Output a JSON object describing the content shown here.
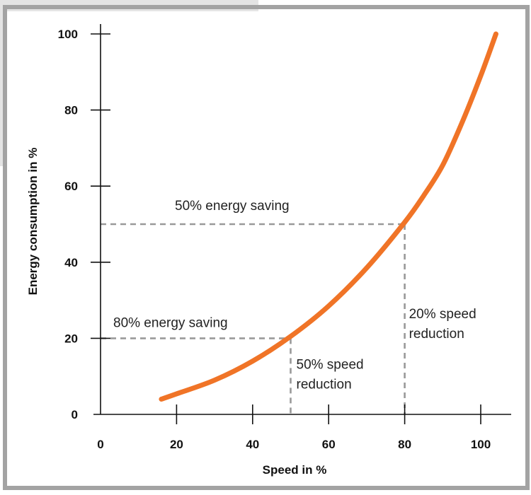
{
  "chart_data": {
    "type": "line",
    "xlabel": "Speed in %",
    "ylabel": "Energy consumption in %",
    "xlim": [
      0,
      105
    ],
    "ylim": [
      0,
      100
    ],
    "x_ticks": [
      0,
      20,
      40,
      60,
      80,
      100
    ],
    "y_ticks": [
      0,
      20,
      40,
      60,
      80,
      100
    ],
    "grid": false,
    "colors": {
      "curve": "#f07427",
      "axis": "#111111",
      "guide": "#999999",
      "frame": "#a3a3a3"
    },
    "series": [
      {
        "x": [
          16,
          20,
          30,
          40,
          50,
          60,
          70,
          80,
          85,
          90,
          95,
          100,
          104
        ],
        "values": [
          4,
          5.4,
          9,
          14,
          20.5,
          28.5,
          38.5,
          50.5,
          57.5,
          65.5,
          76.5,
          89,
          100
        ]
      }
    ],
    "annotations": [
      {
        "id": "ann-50-saving",
        "lines": [
          "50% energy saving"
        ],
        "x": 0,
        "y": 50
      },
      {
        "id": "ann-80-saving",
        "lines": [
          "80% energy saving"
        ],
        "x": 0,
        "y": 20
      },
      {
        "id": "ann-50-speed",
        "lines": [
          "50% speed",
          "reduction"
        ],
        "x": 50,
        "y": 20
      },
      {
        "id": "ann-20-speed",
        "lines": [
          "20% speed",
          "reduction"
        ],
        "x": 80,
        "y": 50
      }
    ]
  }
}
